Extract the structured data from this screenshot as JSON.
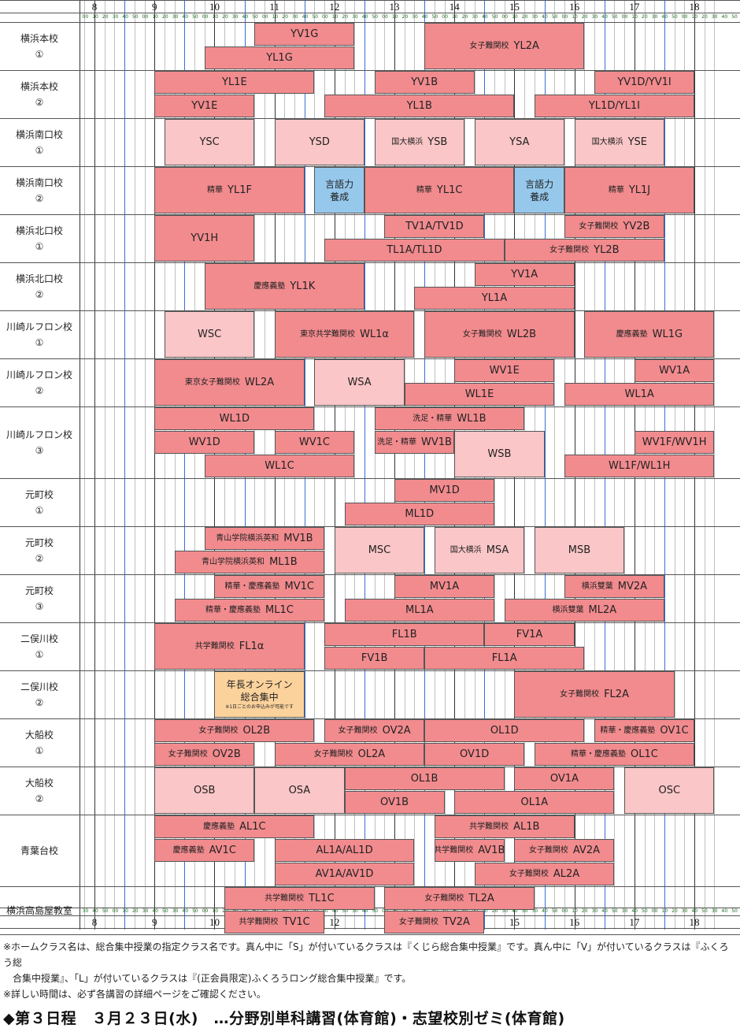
{
  "hours": [
    "8",
    "9",
    "10",
    "11",
    "12",
    "13",
    "14",
    "15",
    "16",
    "17",
    "18"
  ],
  "minute_labels_top": [
    "00",
    "10",
    "20",
    "30",
    "40",
    "50"
  ],
  "minute_labels_bottom": [
    "30",
    "40",
    "50",
    "00",
    "10",
    "20",
    "30",
    "40",
    "50"
  ],
  "rows": [
    {
      "label_lines": [
        "横浜本校",
        "①"
      ],
      "lanes": 2,
      "classes": [
        {
          "lane": 0,
          "span": 1,
          "start": "10:40",
          "end": "12:20",
          "text": "YV1G",
          "color": "L"
        },
        {
          "lane": 1,
          "span": 1,
          "start": "9:50",
          "end": "12:20",
          "text": "YL1G",
          "color": "L"
        },
        {
          "lane": 0,
          "span": 2,
          "start": "13:30",
          "end": "16:10",
          "prefix": "女子難関校",
          "text": "YL2A",
          "color": "L"
        }
      ]
    },
    {
      "label_lines": [
        "横浜本校",
        "②"
      ],
      "lanes": 2,
      "classes": [
        {
          "lane": 0,
          "span": 1,
          "start": "9:00",
          "end": "11:40",
          "text": "YL1E",
          "color": "L"
        },
        {
          "lane": 1,
          "span": 1,
          "start": "9:00",
          "end": "10:40",
          "text": "YV1E",
          "color": "L"
        },
        {
          "lane": 0,
          "span": 1,
          "start": "12:40",
          "end": "14:20",
          "text": "YV1B",
          "color": "L"
        },
        {
          "lane": 1,
          "span": 1,
          "start": "11:50",
          "end": "15:00",
          "text": "YL1B",
          "color": "L"
        },
        {
          "lane": 0,
          "span": 1,
          "start": "16:20",
          "end": "18:00",
          "text": "YV1D/YV1I",
          "color": "L"
        },
        {
          "lane": 1,
          "span": 1,
          "start": "15:20",
          "end": "18:00",
          "text": "YL1D/YL1I",
          "color": "L"
        }
      ]
    },
    {
      "label_lines": [
        "横浜南口校",
        "①"
      ],
      "lanes": 2,
      "classes": [
        {
          "lane": 0,
          "span": 2,
          "start": "9:10",
          "end": "10:40",
          "text": "YSC",
          "color": "S"
        },
        {
          "lane": 0,
          "span": 2,
          "start": "11:00",
          "end": "12:30",
          "text": "YSD",
          "color": "S"
        },
        {
          "lane": 0,
          "span": 2,
          "start": "12:40",
          "end": "14:10",
          "prefix": "国大横浜",
          "text": "YSB",
          "color": "S"
        },
        {
          "lane": 0,
          "span": 2,
          "start": "14:20",
          "end": "15:50",
          "text": "YSA",
          "color": "S"
        },
        {
          "lane": 0,
          "span": 2,
          "start": "16:00",
          "end": "17:30",
          "prefix": "国大横浜",
          "text": "YSE",
          "color": "S"
        }
      ]
    },
    {
      "label_lines": [
        "横浜南口校",
        "②"
      ],
      "lanes": 2,
      "classes": [
        {
          "lane": 0,
          "span": 2,
          "start": "9:00",
          "end": "11:30",
          "prefix": "精華",
          "text": "YL1F",
          "color": "L"
        },
        {
          "lane": 0,
          "span": 2,
          "start": "11:40",
          "end": "12:30",
          "lines": [
            "言語力",
            "養成"
          ],
          "color": "G"
        },
        {
          "lane": 0,
          "span": 2,
          "start": "12:30",
          "end": "15:00",
          "prefix": "精華",
          "text": "YL1C",
          "color": "L"
        },
        {
          "lane": 0,
          "span": 2,
          "start": "15:00",
          "end": "15:50",
          "lines": [
            "言語力",
            "養成"
          ],
          "color": "G"
        },
        {
          "lane": 0,
          "span": 2,
          "start": "15:50",
          "end": "18:00",
          "prefix": "精華",
          "text": "YL1J",
          "color": "L"
        }
      ]
    },
    {
      "label_lines": [
        "横浜北口校",
        "①"
      ],
      "lanes": 2,
      "classes": [
        {
          "lane": 0,
          "span": 2,
          "start": "9:00",
          "end": "10:40",
          "text": "YV1H",
          "color": "L"
        },
        {
          "lane": 0,
          "span": 1,
          "start": "12:50",
          "end": "14:30",
          "text": "TV1A/TV1D",
          "color": "L"
        },
        {
          "lane": 1,
          "span": 1,
          "start": "11:50",
          "end": "14:50",
          "text": "TL1A/TL1D",
          "color": "L"
        },
        {
          "lane": 0,
          "span": 1,
          "start": "15:50",
          "end": "17:30",
          "prefix": "女子難関校",
          "text": "YV2B",
          "color": "L"
        },
        {
          "lane": 1,
          "span": 1,
          "start": "14:50",
          "end": "17:30",
          "prefix": "女子難関校",
          "text": "YL2B",
          "color": "L"
        }
      ]
    },
    {
      "label_lines": [
        "横浜北口校",
        "②"
      ],
      "lanes": 2,
      "classes": [
        {
          "lane": 0,
          "span": 2,
          "start": "9:50",
          "end": "12:30",
          "prefix": "慶應義塾",
          "text": "YL1K",
          "color": "L"
        },
        {
          "lane": 0,
          "span": 1,
          "start": "14:20",
          "end": "16:00",
          "text": "YV1A",
          "color": "L"
        },
        {
          "lane": 1,
          "span": 1,
          "start": "13:20",
          "end": "16:00",
          "text": "YL1A",
          "color": "L"
        }
      ]
    },
    {
      "label_lines": [
        "川崎ルフロン校",
        "①"
      ],
      "lanes": 2,
      "classes": [
        {
          "lane": 0,
          "span": 2,
          "start": "9:10",
          "end": "10:40",
          "text": "WSC",
          "color": "S"
        },
        {
          "lane": 0,
          "span": 2,
          "start": "11:00",
          "end": "13:20",
          "prefix": "東京共学難関校",
          "text": "WL1α",
          "color": "L"
        },
        {
          "lane": 0,
          "span": 2,
          "start": "13:30",
          "end": "16:00",
          "prefix": "女子難関校",
          "text": "WL2B",
          "color": "L"
        },
        {
          "lane": 0,
          "span": 2,
          "start": "16:10",
          "end": "18:20",
          "prefix": "慶應義塾",
          "text": "WL1G",
          "color": "L"
        }
      ]
    },
    {
      "label_lines": [
        "川崎ルフロン校",
        "②"
      ],
      "lanes": 2,
      "classes": [
        {
          "lane": 0,
          "span": 2,
          "start": "9:00",
          "end": "11:30",
          "prefix": "東京女子難関校",
          "text": "WL2A",
          "color": "L"
        },
        {
          "lane": 0,
          "span": 2,
          "start": "11:40",
          "end": "13:10",
          "text": "WSA",
          "color": "S"
        },
        {
          "lane": 0,
          "span": 1,
          "start": "14:00",
          "end": "15:40",
          "text": "WV1E",
          "color": "L"
        },
        {
          "lane": 1,
          "span": 1,
          "start": "13:10",
          "end": "15:40",
          "text": "WL1E",
          "color": "L"
        },
        {
          "lane": 0,
          "span": 1,
          "start": "17:00",
          "end": "18:20",
          "text": "WV1A",
          "color": "L"
        },
        {
          "lane": 1,
          "span": 1,
          "start": "15:50",
          "end": "18:20",
          "text": "WL1A",
          "color": "L"
        }
      ]
    },
    {
      "label_lines": [
        "川崎ルフロン校",
        "③"
      ],
      "lanes": 3,
      "classes": [
        {
          "lane": 0,
          "span": 1,
          "start": "9:00",
          "end": "11:40",
          "text": "WL1D",
          "color": "L"
        },
        {
          "lane": 1,
          "span": 1,
          "start": "9:00",
          "end": "10:40",
          "text": "WV1D",
          "color": "L"
        },
        {
          "lane": 1,
          "span": 1,
          "start": "11:00",
          "end": "12:20",
          "text": "WV1C",
          "color": "L"
        },
        {
          "lane": 2,
          "span": 1,
          "start": "9:50",
          "end": "12:20",
          "text": "WL1C",
          "color": "L"
        },
        {
          "lane": 0,
          "span": 1,
          "start": "12:40",
          "end": "15:10",
          "prefix": "洗足・精華",
          "text": "WL1B",
          "color": "L"
        },
        {
          "lane": 1,
          "span": 1,
          "start": "12:40",
          "end": "14:00",
          "prefix": "洗足・精華",
          "text": "WV1B",
          "color": "L"
        },
        {
          "lane": 1,
          "span": 2,
          "start": "14:00",
          "end": "15:30",
          "text": "WSB",
          "color": "S"
        },
        {
          "lane": 1,
          "span": 1,
          "start": "17:00",
          "end": "18:20",
          "text": "WV1F/WV1H",
          "color": "L"
        },
        {
          "lane": 2,
          "span": 1,
          "start": "15:50",
          "end": "18:20",
          "text": "WL1F/WL1H",
          "color": "L"
        }
      ]
    },
    {
      "label_lines": [
        "元町校",
        "①"
      ],
      "lanes": 2,
      "classes": [
        {
          "lane": 0,
          "span": 1,
          "start": "13:00",
          "end": "14:40",
          "text": "MV1D",
          "color": "L"
        },
        {
          "lane": 1,
          "span": 1,
          "start": "12:10",
          "end": "14:40",
          "text": "ML1D",
          "color": "L"
        }
      ]
    },
    {
      "label_lines": [
        "元町校",
        "②"
      ],
      "lanes": 2,
      "classes": [
        {
          "lane": 0,
          "span": 1,
          "start": "9:50",
          "end": "11:50",
          "prefix": "青山学院横浜英和",
          "text": "MV1B",
          "color": "L"
        },
        {
          "lane": 1,
          "span": 1,
          "start": "9:20",
          "end": "11:50",
          "prefix": "青山学院横浜英和",
          "text": "ML1B",
          "color": "L"
        },
        {
          "lane": 0,
          "span": 2,
          "start": "12:00",
          "end": "13:30",
          "text": "MSC",
          "color": "S"
        },
        {
          "lane": 0,
          "span": 2,
          "start": "13:40",
          "end": "15:10",
          "prefix": "国大横浜",
          "text": "MSA",
          "color": "S"
        },
        {
          "lane": 0,
          "span": 2,
          "start": "15:20",
          "end": "16:50",
          "text": "MSB",
          "color": "S"
        }
      ]
    },
    {
      "label_lines": [
        "元町校",
        "③"
      ],
      "lanes": 2,
      "classes": [
        {
          "lane": 0,
          "span": 1,
          "start": "10:00",
          "end": "11:50",
          "prefix": "精華・慶應義塾",
          "text": "MV1C",
          "color": "L"
        },
        {
          "lane": 1,
          "span": 1,
          "start": "9:20",
          "end": "11:50",
          "prefix": "精華・慶應義塾",
          "text": "ML1C",
          "color": "L"
        },
        {
          "lane": 0,
          "span": 1,
          "start": "13:00",
          "end": "14:40",
          "text": "MV1A",
          "color": "L"
        },
        {
          "lane": 1,
          "span": 1,
          "start": "12:10",
          "end": "14:40",
          "text": "ML1A",
          "color": "L"
        },
        {
          "lane": 0,
          "span": 1,
          "start": "15:50",
          "end": "17:30",
          "prefix": "横浜雙葉",
          "text": "MV2A",
          "color": "L"
        },
        {
          "lane": 1,
          "span": 1,
          "start": "14:50",
          "end": "17:30",
          "prefix": "横浜雙葉",
          "text": "ML2A",
          "color": "L"
        }
      ]
    },
    {
      "label_lines": [
        "二俣川校",
        "①"
      ],
      "lanes": 2,
      "classes": [
        {
          "lane": 0,
          "span": 2,
          "start": "9:00",
          "end": "11:30",
          "prefix": "共学難関校",
          "text": "FL1α",
          "color": "L"
        },
        {
          "lane": 0,
          "span": 1,
          "start": "11:50",
          "end": "14:30",
          "text": "FL1B",
          "color": "L"
        },
        {
          "lane": 1,
          "span": 1,
          "start": "11:50",
          "end": "13:30",
          "text": "FV1B",
          "color": "L"
        },
        {
          "lane": 0,
          "span": 1,
          "start": "14:30",
          "end": "16:00",
          "text": "FV1A",
          "color": "L"
        },
        {
          "lane": 1,
          "span": 1,
          "start": "13:30",
          "end": "16:10",
          "text": "FL1A",
          "color": "L"
        }
      ]
    },
    {
      "label_lines": [
        "二俣川校",
        "②"
      ],
      "lanes": 2,
      "classes": [
        {
          "lane": 0,
          "span": 2,
          "start": "10:00",
          "end": "11:30",
          "lines": [
            "年長オンライン",
            "総合集中"
          ],
          "note": "※1日ごとのお申込みが可能です",
          "color": "O"
        },
        {
          "lane": 0,
          "span": 2,
          "start": "15:00",
          "end": "17:40",
          "prefix": "女子難関校",
          "text": "FL2A",
          "color": "L"
        }
      ]
    },
    {
      "label_lines": [
        "大船校",
        "①"
      ],
      "lanes": 2,
      "classes": [
        {
          "lane": 0,
          "span": 1,
          "start": "9:00",
          "end": "11:40",
          "prefix": "女子難関校",
          "text": "OL2B",
          "color": "L"
        },
        {
          "lane": 1,
          "span": 1,
          "start": "9:00",
          "end": "10:40",
          "prefix": "女子難関校",
          "text": "OV2B",
          "color": "L"
        },
        {
          "lane": 0,
          "span": 1,
          "start": "11:50",
          "end": "13:30",
          "prefix": "女子難関校",
          "text": "OV2A",
          "color": "L"
        },
        {
          "lane": 1,
          "span": 1,
          "start": "11:00",
          "end": "13:30",
          "prefix": "女子難関校",
          "text": "OL2A",
          "color": "L"
        },
        {
          "lane": 0,
          "span": 1,
          "start": "13:30",
          "end": "16:10",
          "text": "OL1D",
          "color": "L"
        },
        {
          "lane": 1,
          "span": 1,
          "start": "13:30",
          "end": "15:10",
          "text": "OV1D",
          "color": "L"
        },
        {
          "lane": 0,
          "span": 1,
          "start": "16:20",
          "end": "18:00",
          "prefix": "精華・慶應義塾",
          "text": "OV1C",
          "color": "L"
        },
        {
          "lane": 1,
          "span": 1,
          "start": "15:20",
          "end": "18:00",
          "prefix": "精華・慶應義塾",
          "text": "OL1C",
          "color": "L"
        }
      ]
    },
    {
      "label_lines": [
        "大船校",
        "②"
      ],
      "lanes": 2,
      "classes": [
        {
          "lane": 0,
          "span": 2,
          "start": "9:00",
          "end": "10:40",
          "text": "OSB",
          "color": "S"
        },
        {
          "lane": 0,
          "span": 2,
          "start": "10:40",
          "end": "12:10",
          "text": "OSA",
          "color": "S"
        },
        {
          "lane": 0,
          "span": 1,
          "start": "12:10",
          "end": "14:50",
          "text": "OL1B",
          "color": "L"
        },
        {
          "lane": 1,
          "span": 1,
          "start": "12:10",
          "end": "13:50",
          "text": "OV1B",
          "color": "L"
        },
        {
          "lane": 0,
          "span": 1,
          "start": "15:00",
          "end": "16:40",
          "text": "OV1A",
          "color": "L"
        },
        {
          "lane": 1,
          "span": 1,
          "start": "14:00",
          "end": "16:40",
          "text": "OL1A",
          "color": "L"
        },
        {
          "lane": 0,
          "span": 2,
          "start": "16:50",
          "end": "18:20",
          "text": "OSC",
          "color": "S"
        }
      ]
    },
    {
      "label_lines": [
        "青葉台校"
      ],
      "lanes": 3,
      "classes": [
        {
          "lane": 0,
          "span": 1,
          "start": "9:00",
          "end": "11:40",
          "prefix": "慶應義塾",
          "text": "AL1C",
          "color": "L"
        },
        {
          "lane": 1,
          "span": 1,
          "start": "9:00",
          "end": "10:40",
          "prefix": "慶應義塾",
          "text": "AV1C",
          "color": "L"
        },
        {
          "lane": 1,
          "span": 1,
          "start": "11:00",
          "end": "13:20",
          "text": "AL1A/AL1D",
          "color": "L"
        },
        {
          "lane": 2,
          "span": 1,
          "start": "11:00",
          "end": "13:20",
          "text": "AV1A/AV1D",
          "color": "L"
        },
        {
          "lane": 0,
          "span": 1,
          "start": "13:40",
          "end": "16:00",
          "prefix": "共学難関校",
          "text": "AL1B",
          "color": "L"
        },
        {
          "lane": 1,
          "span": 1,
          "start": "13:40",
          "end": "14:50",
          "prefix": "共学難関校",
          "text": "AV1B",
          "color": "L"
        },
        {
          "lane": 1,
          "span": 1,
          "start": "15:00",
          "end": "16:40",
          "prefix": "女子難関校",
          "text": "AV2A",
          "color": "L"
        },
        {
          "lane": 2,
          "span": 1,
          "start": "14:20",
          "end": "16:40",
          "prefix": "女子難関校",
          "text": "AL2A",
          "color": "L"
        }
      ]
    },
    {
      "label_lines": [
        "横浜高島屋教室"
      ],
      "lanes": 2,
      "classes": [
        {
          "lane": 0,
          "span": 1,
          "start": "10:10",
          "end": "12:40",
          "prefix": "共学難関校",
          "text": "TL1C",
          "color": "L"
        },
        {
          "lane": 1,
          "span": 1,
          "start": "10:10",
          "end": "11:50",
          "prefix": "共学難関校",
          "text": "TV1C",
          "color": "L"
        },
        {
          "lane": 0,
          "span": 1,
          "start": "12:50",
          "end": "15:20",
          "prefix": "女子難関校",
          "text": "TL2A",
          "color": "L"
        },
        {
          "lane": 1,
          "span": 1,
          "start": "12:50",
          "end": "14:30",
          "prefix": "女子難関校",
          "text": "TV2A",
          "color": "L"
        }
      ]
    }
  ],
  "notes": {
    "line1": "※ホームクラス名は、総合集中授業の指定クラス名です。真ん中に「S」が付いているクラスは『くじら総合集中授業』です。真ん中に「V」が付いているクラスは『ふくろう総",
    "line2": "合集中授業』、「L」が付いているクラスは『(正会員限定)ふくろうロング総合集中授業』です。",
    "line3": "※詳しい時間は、必ず各講習の詳細ページをご確認ください。"
  },
  "section_title": "◆第３日程　３月２３日(水)　…分野別単科講習(体育館)・志望校別ゼミ(体育館)",
  "colors": {
    "long": "#f28b8e",
    "short": "#fbc6c8",
    "language": "#96c8ec",
    "online": "#fcd29c"
  }
}
